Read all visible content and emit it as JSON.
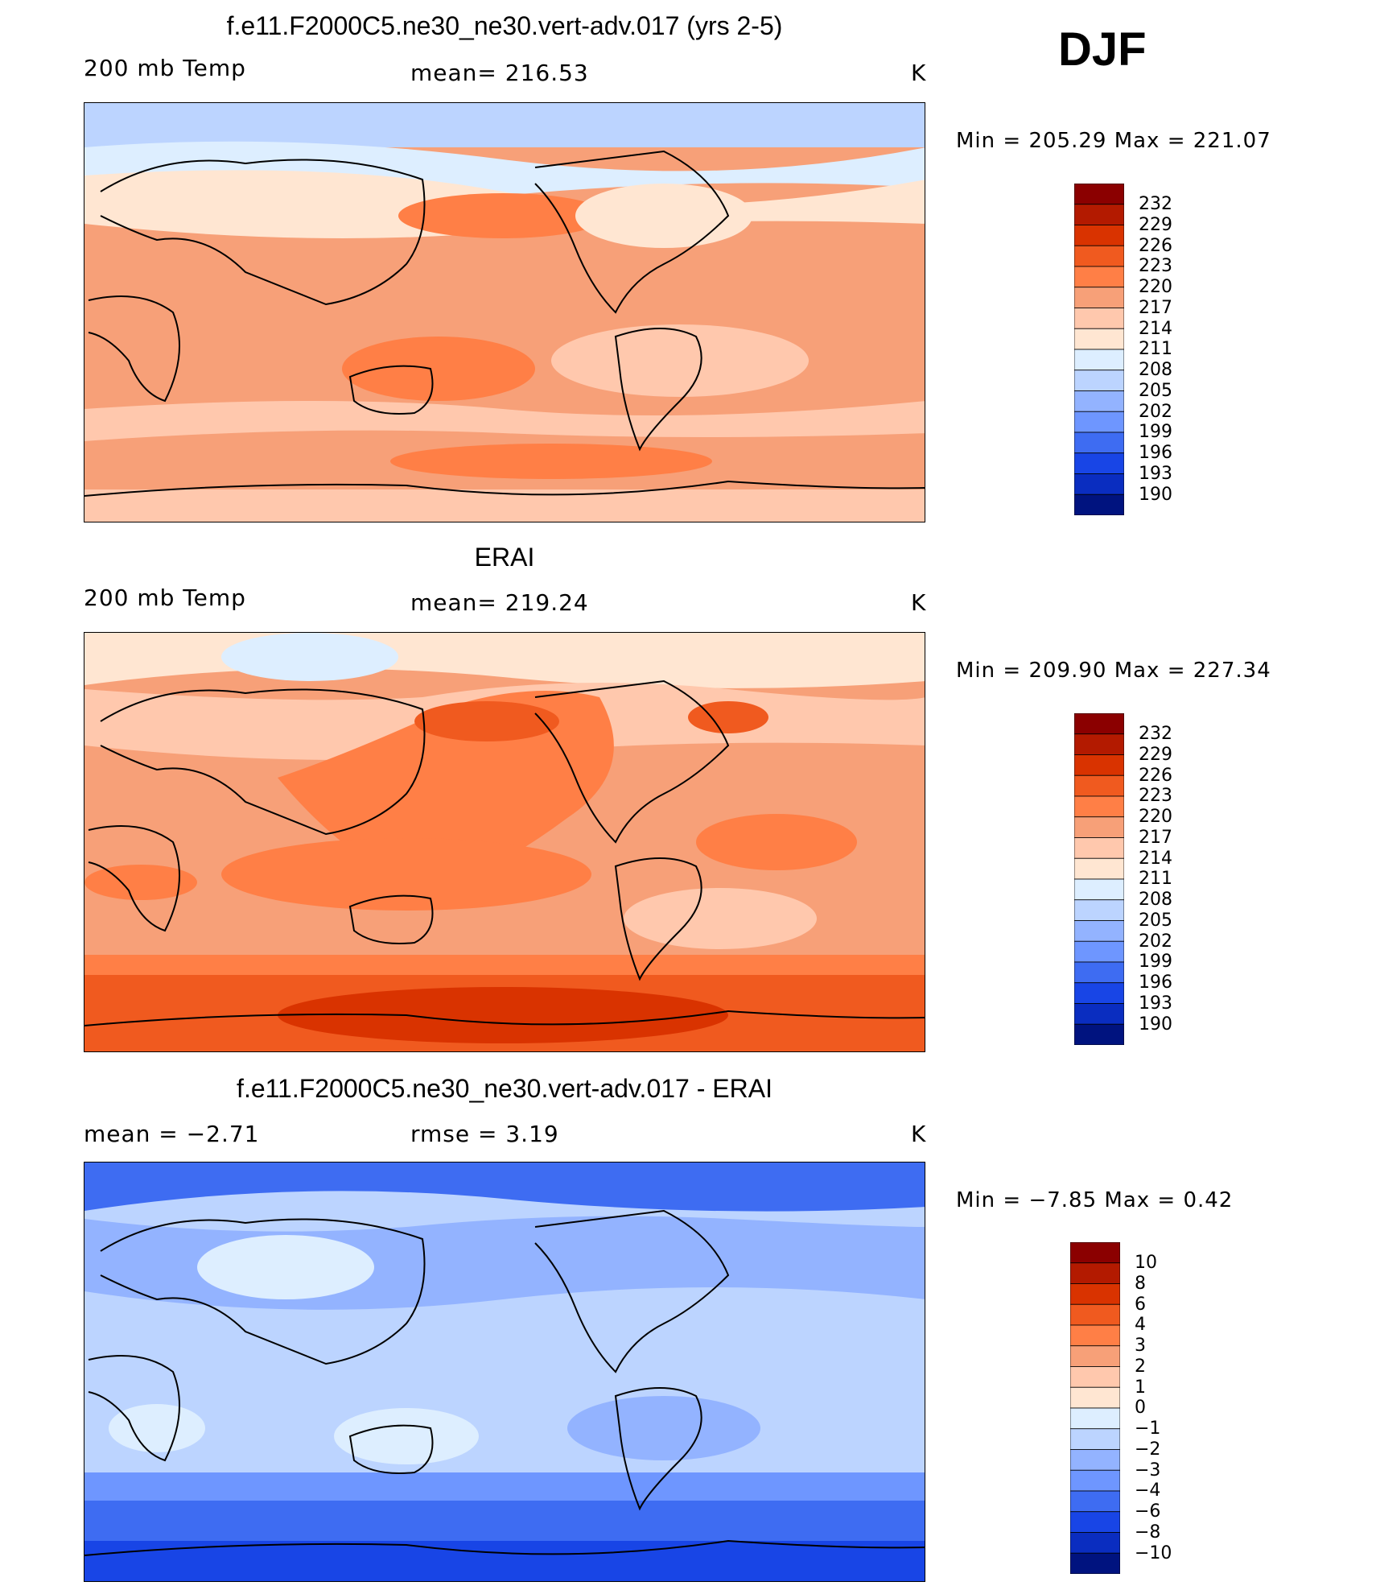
{
  "season": "DJF",
  "panels": [
    {
      "title": "f.e11.F2000C5.ne30_ne30.vert-adv.017 (yrs 2-5)",
      "left_label": "200 mb Temp",
      "center_label": "mean=  216.53",
      "units": "K",
      "minmax": "Min  =  205.29  Max  =  221.07",
      "colorbar": {
        "labels": [
          "232",
          "229",
          "226",
          "223",
          "220",
          "217",
          "214",
          "211",
          "208",
          "205",
          "202",
          "199",
          "196",
          "193",
          "190"
        ],
        "colors": [
          "#8b0000",
          "#b31a00",
          "#d93300",
          "#f05a1f",
          "#ff7f46",
          "#f7a078",
          "#ffc8ad",
          "#ffe6d2",
          "#ddeeff",
          "#bcd4ff",
          "#93b3ff",
          "#6e96ff",
          "#3e6cf2",
          "#1845e6",
          "#0a2dc0",
          "#00137f"
        ]
      }
    },
    {
      "title": "ERAI",
      "left_label": "200 mb Temp",
      "center_label": "mean=  219.24",
      "units": "K",
      "minmax": "Min  =  209.90  Max  =  227.34",
      "colorbar": {
        "labels": [
          "232",
          "229",
          "226",
          "223",
          "220",
          "217",
          "214",
          "211",
          "208",
          "205",
          "202",
          "199",
          "196",
          "193",
          "190"
        ],
        "colors": [
          "#8b0000",
          "#b31a00",
          "#d93300",
          "#f05a1f",
          "#ff7f46",
          "#f7a078",
          "#ffc8ad",
          "#ffe6d2",
          "#ddeeff",
          "#bcd4ff",
          "#93b3ff",
          "#6e96ff",
          "#3e6cf2",
          "#1845e6",
          "#0a2dc0",
          "#00137f"
        ]
      }
    },
    {
      "title": "f.e11.F2000C5.ne30_ne30.vert-adv.017 - ERAI",
      "left_label": "mean  =    −2.71",
      "center_label": "rmse  =      3.19",
      "units": "K",
      "minmax": "Min  =    −7.85  Max  =     0.42",
      "colorbar": {
        "labels": [
          "10",
          "8",
          "6",
          "4",
          "3",
          "2",
          "1",
          "0",
          "−1",
          "−2",
          "−3",
          "−4",
          "−6",
          "−8",
          "−10"
        ],
        "colors": [
          "#8b0000",
          "#b31a00",
          "#d93300",
          "#f05a1f",
          "#ff7f46",
          "#f7a078",
          "#ffc8ad",
          "#ffe6d2",
          "#ddeeff",
          "#bcd4ff",
          "#93b3ff",
          "#6e96ff",
          "#3e6cf2",
          "#1845e6",
          "#0a2dc0",
          "#00137f"
        ]
      }
    }
  ]
}
